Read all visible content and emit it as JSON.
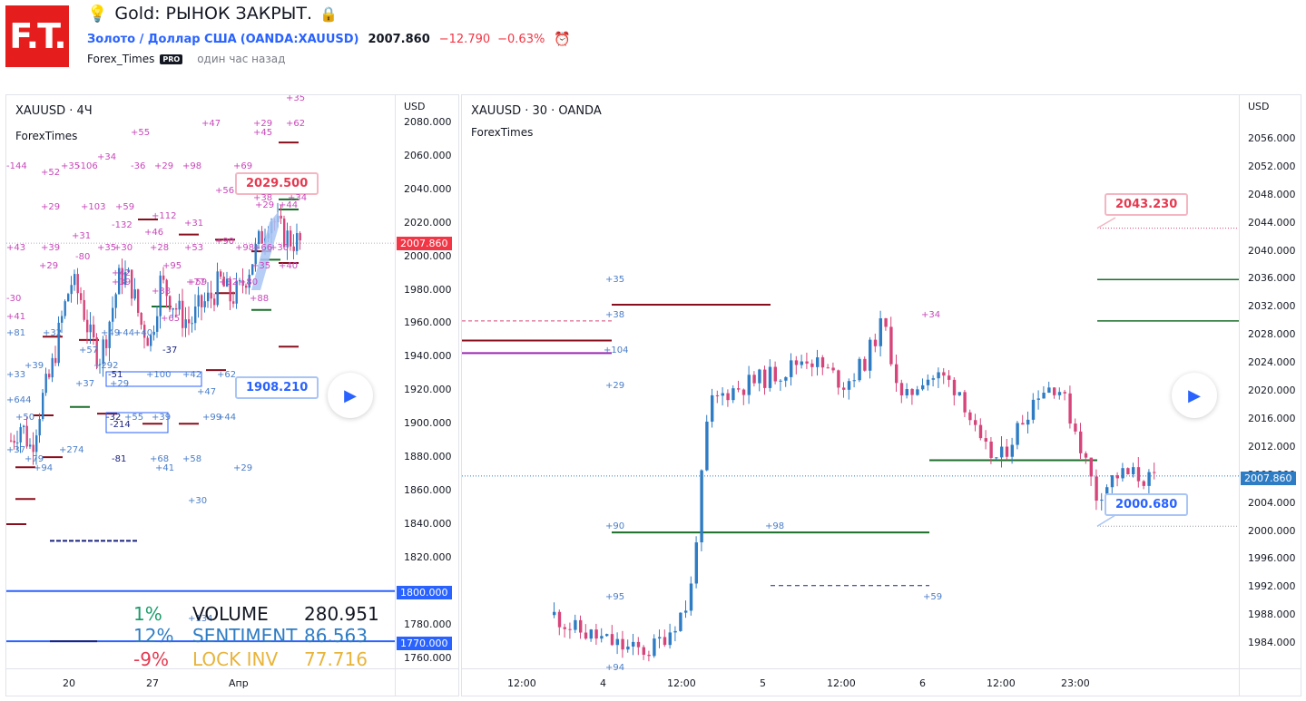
{
  "header": {
    "logo_text": "F.T.",
    "title": "Gold: РЫНОК ЗАКРЫТ.",
    "symbol_name": "Золото / Доллар США",
    "symbol_code": "(OANDA:XAUUSD)",
    "price": "2007.860",
    "change": "−12.790",
    "change_pct": "−0.63%",
    "author": "Forex_Times",
    "badge": "PRO",
    "time_ago": "один час назад"
  },
  "left_chart": {
    "title": "XAUUSD · 4Ч",
    "subtitle": "ForexTimes",
    "currency": "USD",
    "y_ticks": [
      "2080.000",
      "2060.000",
      "2040.000",
      "2020.000",
      "2000.000",
      "1980.000",
      "1960.000",
      "1940.000",
      "1920.000",
      "1900.000",
      "1880.000",
      "1860.000",
      "1840.000",
      "1820.000",
      "1780.000",
      "1760.000"
    ],
    "x_ticks": [
      "20",
      "27",
      "Апр"
    ],
    "price_tag": "2007.860",
    "tag_1800": "1800.000",
    "tag_1770": "1770.000",
    "callout_high": "2029.500",
    "callout_low": "1908.210",
    "overlay": {
      "v_pct": "1%",
      "v_label": "VOLUME",
      "v_value": "280.951",
      "s_pct": "12%",
      "s_label": "SENTIMENT",
      "s_value": "86.563",
      "l_pct": "-9%",
      "l_label": "LOCK INV",
      "l_value": "77.716"
    },
    "markers": [
      "+35",
      "+62",
      "+29",
      "+45",
      "+47",
      "+55",
      "-144",
      "+52",
      "+35",
      "-106",
      "+34",
      "-36",
      "+29",
      "+98",
      "+69",
      "+56",
      "+38",
      "+34",
      "+29",
      "+44",
      "+29",
      "+103",
      "+59",
      "+112",
      "+31",
      "+31",
      "-132",
      "+46",
      "+43",
      "+39",
      "-80",
      "+35",
      "+30",
      "+28",
      "+53",
      "+90",
      "+98",
      "+66",
      "+30",
      "+29",
      "+42",
      "+95",
      "+59",
      "+35",
      "+40",
      "+39",
      "+38",
      "+77",
      "+32",
      "+80",
      "+88",
      "-30",
      "+41",
      "+81",
      "+32",
      "+49",
      "+44",
      "+40",
      "+65",
      "+57",
      "-37",
      "+33",
      "+39",
      "+292",
      "-51",
      "+100",
      "+42",
      "+62",
      "+37",
      "+29",
      "+47",
      "+644",
      "-32",
      "-214",
      "+55",
      "+39",
      "+99",
      "+44",
      "+50",
      "+37",
      "+79",
      "+94",
      "+274",
      "-81",
      "+68",
      "+58",
      "+41",
      "+29",
      "+30",
      "+134"
    ]
  },
  "right_chart": {
    "title": "XAUUSD · 30 · OANDA",
    "subtitle": "ForexTimes",
    "currency": "USD",
    "y_ticks": [
      "2056.000",
      "2052.000",
      "2048.000",
      "2044.000",
      "2040.000",
      "2036.000",
      "2032.000",
      "2028.000",
      "2024.000",
      "2020.000",
      "2016.000",
      "2012.000",
      "2008.000",
      "2004.000",
      "2000.000",
      "1996.000",
      "1992.000",
      "1988.000",
      "1984.000"
    ],
    "x_ticks": [
      "12:00",
      "4",
      "12:00",
      "5",
      "12:00",
      "6",
      "12:00",
      "23:00"
    ],
    "price_tag": "2007.860",
    "callout_high": "2043.230",
    "callout_low": "2000.680",
    "markers": [
      "+35",
      "+38",
      "+104",
      "+29",
      "+90",
      "+98",
      "+95",
      "+94",
      "+34",
      "+59"
    ]
  },
  "colors": {
    "up": "#2e7cc4",
    "down": "#d6457a",
    "accent": "#2962ff",
    "negative": "#f23645",
    "level_dark_red": "#880e1d",
    "level_green": "#1b6e2a"
  }
}
